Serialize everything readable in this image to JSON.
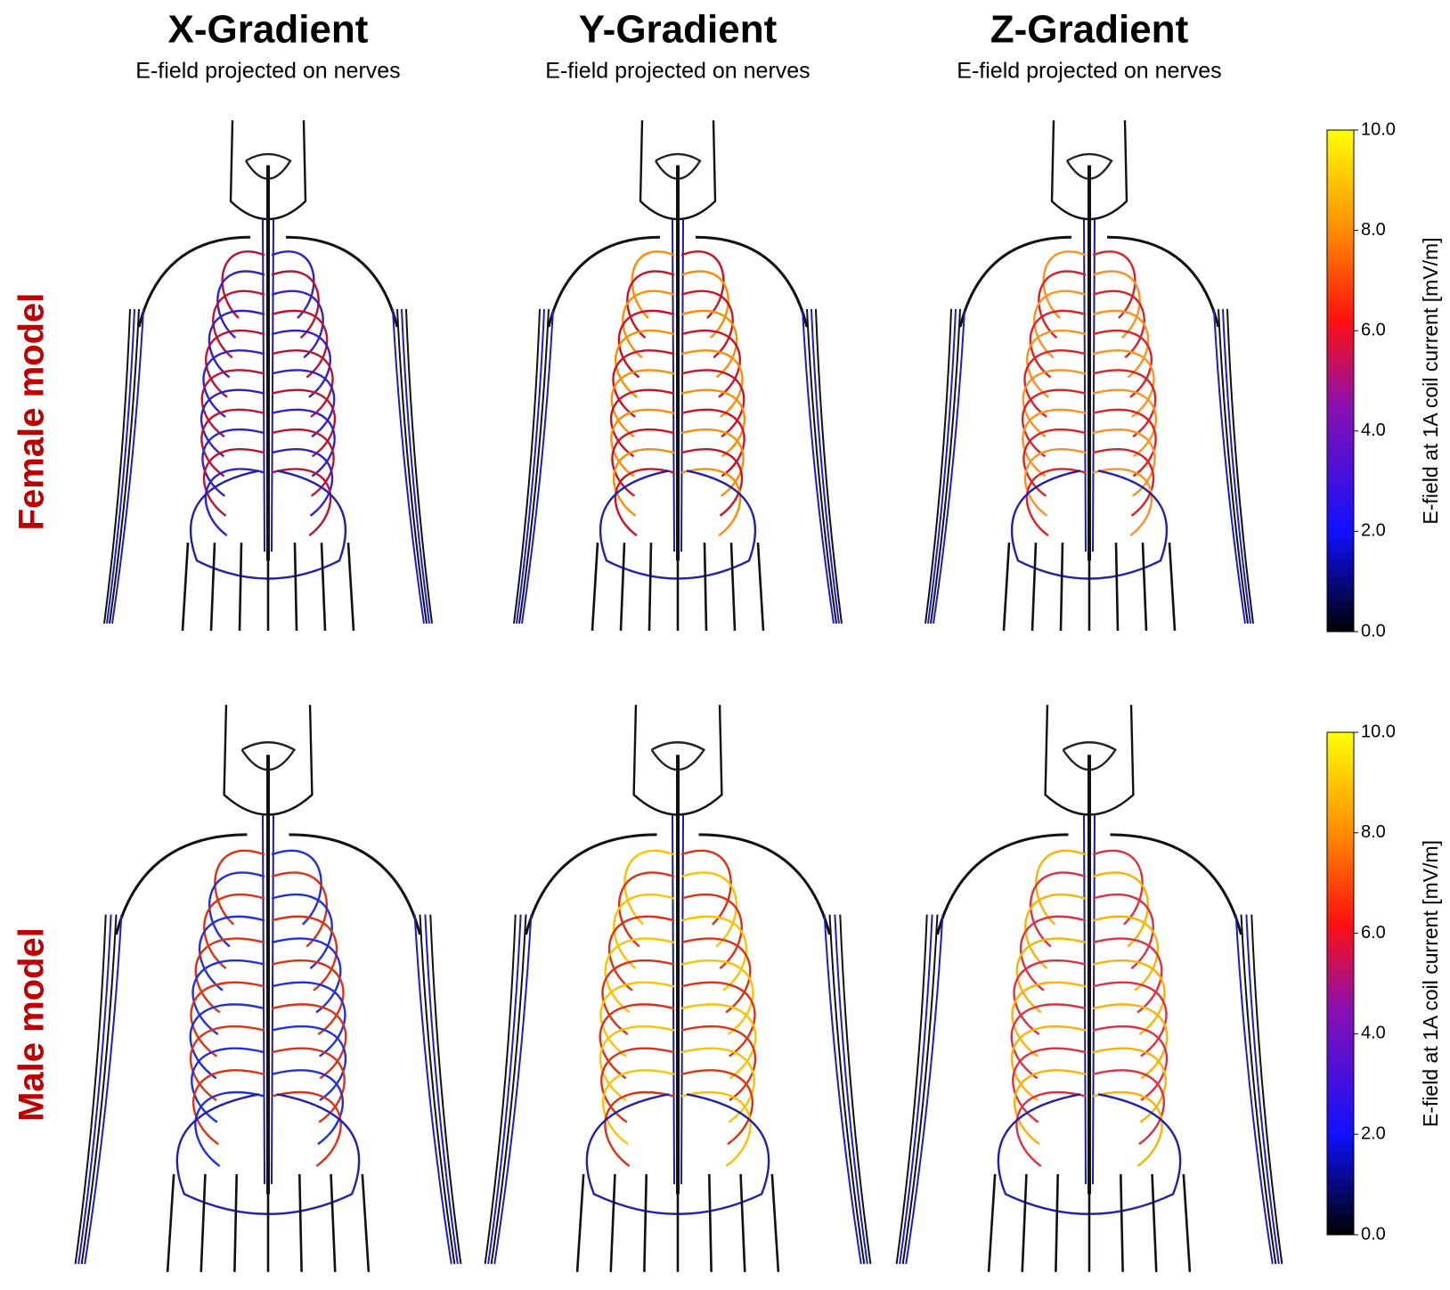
{
  "columns": [
    {
      "title": "X-Gradient",
      "subtitle": "E-field projected on nerves"
    },
    {
      "title": "Y-Gradient",
      "subtitle": "E-field projected on nerves"
    },
    {
      "title": "Z-Gradient",
      "subtitle": "E-field projected on nerves"
    }
  ],
  "rows": [
    "Female model",
    "Male model"
  ],
  "colorbars": [
    {
      "label": "E-field at 1A coil current [mV/m]",
      "lim": [
        0,
        10
      ],
      "ticks": [
        {
          "value": 0,
          "label": "0.0"
        },
        {
          "value": 2,
          "label": "2.0"
        },
        {
          "value": 4,
          "label": "4.0"
        },
        {
          "value": 6,
          "label": "6.0"
        },
        {
          "value": 8,
          "label": "8.0"
        },
        {
          "value": 10,
          "label": "10.0"
        }
      ]
    },
    {
      "label": "E-field at 1A coil current [mV/m]",
      "lim": [
        0,
        10
      ],
      "ticks": [
        {
          "value": 0,
          "label": "0.0"
        },
        {
          "value": 2,
          "label": "2.0"
        },
        {
          "value": 4,
          "label": "4.0"
        },
        {
          "value": 6,
          "label": "6.0"
        },
        {
          "value": 8,
          "label": "8.0"
        },
        {
          "value": 10,
          "label": "10.0"
        }
      ]
    }
  ]
}
